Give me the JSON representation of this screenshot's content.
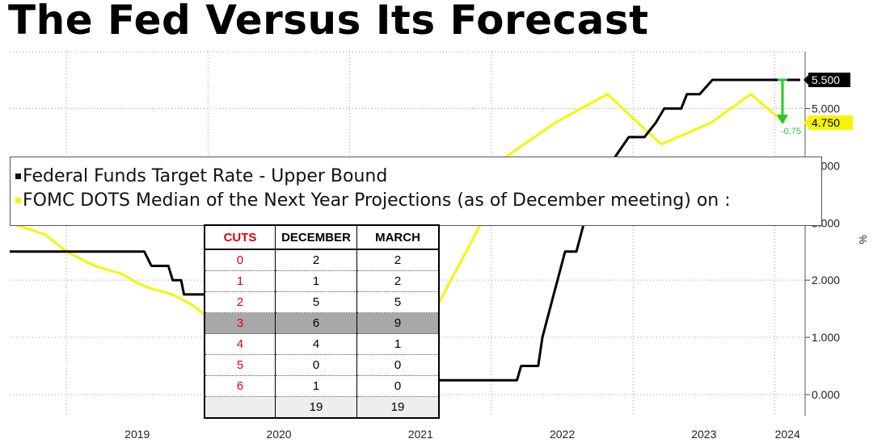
{
  "title": "The Fed Versus Its Forecast",
  "colors": {
    "fed": "#000000",
    "dots": "#f5f500",
    "arrow": "#22cc22",
    "cuts": "#e00000",
    "highlight": "#a8a8a8"
  },
  "legend": {
    "fed": "Federal Funds Target Rate - Upper Bound",
    "dots": "FOMC DOTS Median of the Next Year Projections (as of December meeting) on :"
  },
  "unit_label": "%",
  "table": {
    "headers": [
      "CUTS",
      "DECEMBER",
      "MARCH"
    ],
    "rows": [
      [
        "0",
        "2",
        "2"
      ],
      [
        "1",
        "1",
        "2"
      ],
      [
        "2",
        "5",
        "5"
      ],
      [
        "3",
        "6",
        "9"
      ],
      [
        "4",
        "4",
        "1"
      ],
      [
        "5",
        "0",
        "0"
      ],
      [
        "6",
        "1",
        "0"
      ]
    ],
    "highlight_row": 3,
    "total": [
      "",
      "19",
      "19"
    ]
  },
  "chart_data": {
    "type": "line",
    "title": "The Fed Versus Its Forecast",
    "ylim": [
      0,
      5.5
    ],
    "yticks": [
      "0.000",
      "1.000",
      "2.000",
      "3.000",
      "4.000",
      "5.000"
    ],
    "xticks": [
      "2019",
      "2020",
      "2021",
      "2022",
      "2023",
      "2024"
    ],
    "grid": true,
    "legend_position": "top-left",
    "series": [
      {
        "name": "Federal Funds Target Rate - Upper Bound",
        "color": "#000000",
        "points": [
          [
            2018.6,
            2.5
          ],
          [
            2019.55,
            2.5
          ],
          [
            2019.6,
            2.25
          ],
          [
            2019.72,
            2.25
          ],
          [
            2019.75,
            2.0
          ],
          [
            2019.81,
            2.0
          ],
          [
            2019.83,
            1.75
          ],
          [
            2020.16,
            1.75
          ],
          [
            2020.18,
            1.25
          ],
          [
            2020.2,
            0.25
          ],
          [
            2022.18,
            0.25
          ],
          [
            2022.21,
            0.5
          ],
          [
            2022.33,
            0.5
          ],
          [
            2022.36,
            1.0
          ],
          [
            2022.44,
            1.75
          ],
          [
            2022.52,
            2.5
          ],
          [
            2022.6,
            2.5
          ],
          [
            2022.68,
            3.25
          ],
          [
            2022.83,
            4.0
          ],
          [
            2022.97,
            4.5
          ],
          [
            2023.08,
            4.5
          ],
          [
            2023.16,
            4.75
          ],
          [
            2023.22,
            5.0
          ],
          [
            2023.34,
            5.0
          ],
          [
            2023.38,
            5.25
          ],
          [
            2023.47,
            5.25
          ],
          [
            2023.56,
            5.5
          ],
          [
            2024.18,
            5.5
          ]
        ],
        "last_value": "5.500"
      },
      {
        "name": "FOMC DOTS Median of the Next Year Projections (as of December meeting)",
        "color": "#f5f500",
        "points": [
          [
            2018.6,
            3.0
          ],
          [
            2018.85,
            2.8
          ],
          [
            2019.0,
            2.5
          ],
          [
            2019.2,
            2.25
          ],
          [
            2019.4,
            2.1
          ],
          [
            2019.5,
            1.95
          ],
          [
            2019.6,
            1.85
          ],
          [
            2019.75,
            1.75
          ],
          [
            2019.9,
            1.55
          ],
          [
            2020.1,
            1.15
          ],
          [
            2020.2,
            0.7
          ],
          [
            2020.35,
            0.25
          ],
          [
            2021.0,
            0.25
          ],
          [
            2021.1,
            0.3
          ],
          [
            2021.28,
            0.55
          ],
          [
            2021.5,
            1.0
          ],
          [
            2021.95,
            3.1
          ],
          [
            2022.1,
            4.15
          ],
          [
            2022.45,
            4.75
          ],
          [
            2022.82,
            5.25
          ],
          [
            2023.1,
            4.6
          ],
          [
            2023.2,
            4.375
          ],
          [
            2023.55,
            4.75
          ],
          [
            2023.83,
            5.25
          ],
          [
            2024.07,
            4.75
          ]
        ],
        "last_value": "4.750"
      }
    ],
    "annotation": {
      "label": "-0.75",
      "from": 5.5,
      "to": 4.75
    }
  }
}
